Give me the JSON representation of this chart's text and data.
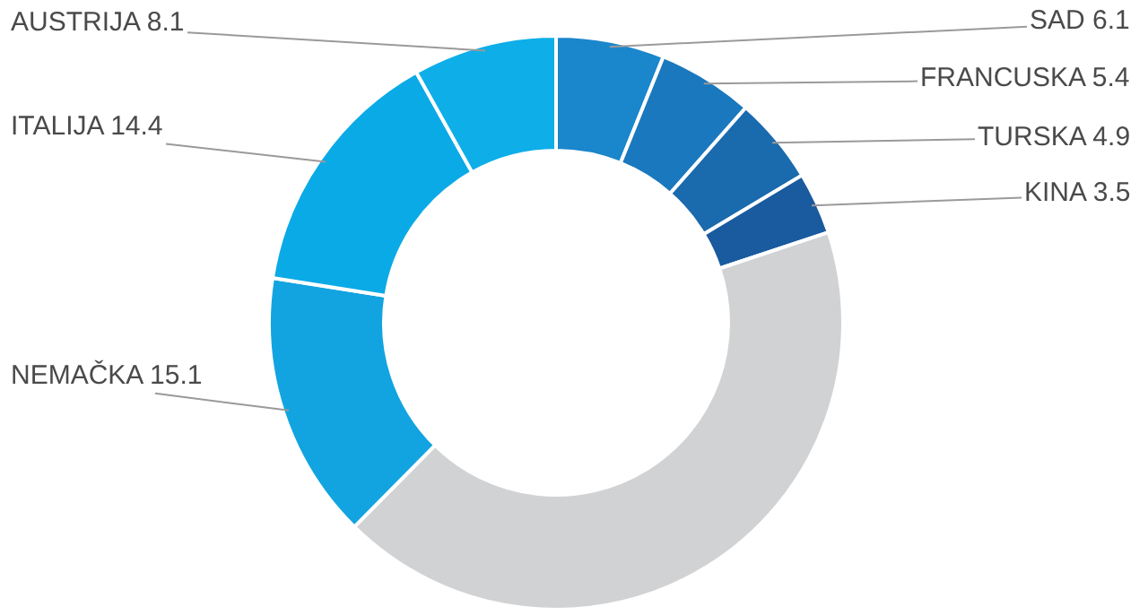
{
  "chart_data": {
    "type": "donut",
    "categories": [
      "SAD",
      "FRANCUSKA",
      "TURSKA",
      "KINA",
      null,
      "NEMAČKA",
      "ITALIJA",
      "AUSTRIJA"
    ],
    "values": [
      6.1,
      5.4,
      4.9,
      3.5,
      42.5,
      15.1,
      14.4,
      8.1
    ],
    "value_labels": [
      "6.1",
      "5.4",
      "4.9",
      "3.5",
      null,
      "15.1",
      "14.4",
      "8.1"
    ],
    "colors": [
      "#1a86cc",
      "#1a78be",
      "#1a6aae",
      "#1a5a9e",
      "#d1d2d4",
      "#12a4e0",
      "#0aaae6",
      "#0eaee8"
    ],
    "legend": false
  }
}
